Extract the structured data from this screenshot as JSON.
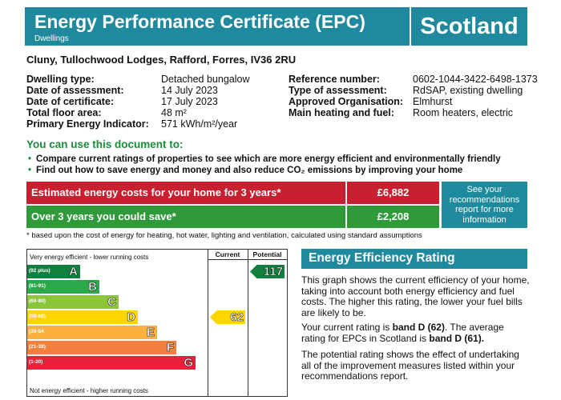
{
  "header": {
    "title": "Energy Performance Certificate (EPC)",
    "subtitle": "Dwellings",
    "country": "Scotland"
  },
  "address": "Cluny, Tullochwood Lodges, Rafford, Forres, IV36 2RU",
  "details_left": [
    {
      "label": "Dwelling type:",
      "value": "Detached bungalow"
    },
    {
      "label": "Date of assessment:",
      "value": "14 July 2023"
    },
    {
      "label": "Date of certificate:",
      "value": "17 July 2023"
    },
    {
      "label": "Total floor area:",
      "value": "48 m²"
    },
    {
      "label": "Primary Energy Indicator:",
      "value": "571 kWh/m²/year"
    }
  ],
  "details_right": [
    {
      "label": "Reference number:",
      "value": "0602-1044-3422-6498-1373"
    },
    {
      "label": "Type of assessment:",
      "value": "RdSAP, existing dwelling"
    },
    {
      "label": "Approved Organisation:",
      "value": "Elmhurst"
    },
    {
      "label": "Main heating and fuel:",
      "value": "Room heaters, electric"
    }
  ],
  "use": {
    "title": "You can use this document to:",
    "bullets": [
      "Compare current ratings of properties to see which are more energy efficient and environmentally friendly",
      "Find out how to save energy and money and also reduce CO₂ emissions by improving your home"
    ]
  },
  "costs": {
    "estimated_label": "Estimated energy costs for your home for 3 years*",
    "estimated_value": "£6,882",
    "saving_label": "Over 3 years you could save*",
    "saving_value": "£2,208",
    "see_recommendations": "See your recommendations report for more information",
    "colors": {
      "estimated": "#c8202f",
      "saving": "#2e9a3a"
    }
  },
  "footnote": "* based upon the cost of energy for heating, hot water, lighting and ventilation, calculated using standard assumptions",
  "chart_data": {
    "type": "table",
    "top_label": "Very energy efficient - lower running costs",
    "bottom_label": "Not energy efficient - higher running costs",
    "columns": [
      "Current",
      "Potential"
    ],
    "bands": [
      {
        "letter": "A",
        "range": "(92 plus)",
        "color": "#11803f"
      },
      {
        "letter": "B",
        "range": "(81-91)",
        "color": "#2aa84a"
      },
      {
        "letter": "C",
        "range": "(69-80)",
        "color": "#8cc43c"
      },
      {
        "letter": "D",
        "range": "(55-68)",
        "color": "#ffd500"
      },
      {
        "letter": "E",
        "range": "(39-54",
        "color": "#fbb040"
      },
      {
        "letter": "F",
        "range": "(21-38)",
        "color": "#f0803c"
      },
      {
        "letter": "G",
        "range": "(1-20)",
        "color": "#e9203a"
      }
    ],
    "current": {
      "value": 62,
      "band": "D",
      "color": "#ffd500"
    },
    "potential": {
      "value": 117,
      "band": "A",
      "color": "#11803f"
    }
  },
  "rating": {
    "title": "Energy Efficiency Rating",
    "p1": "This graph shows the current efficiency of your home, taking into account both energy efficiency and fuel costs. The higher this rating, the lower your fuel bills are likely to be.",
    "p2_a": "Your current rating is ",
    "p2_b": "band D (62)",
    "p2_c": ". The average rating for EPCs in Scotland is ",
    "p2_d": "band D (61).",
    "p3": "The potential rating shows the effect of undertaking all of the improvement measures listed within your recommendations report."
  }
}
